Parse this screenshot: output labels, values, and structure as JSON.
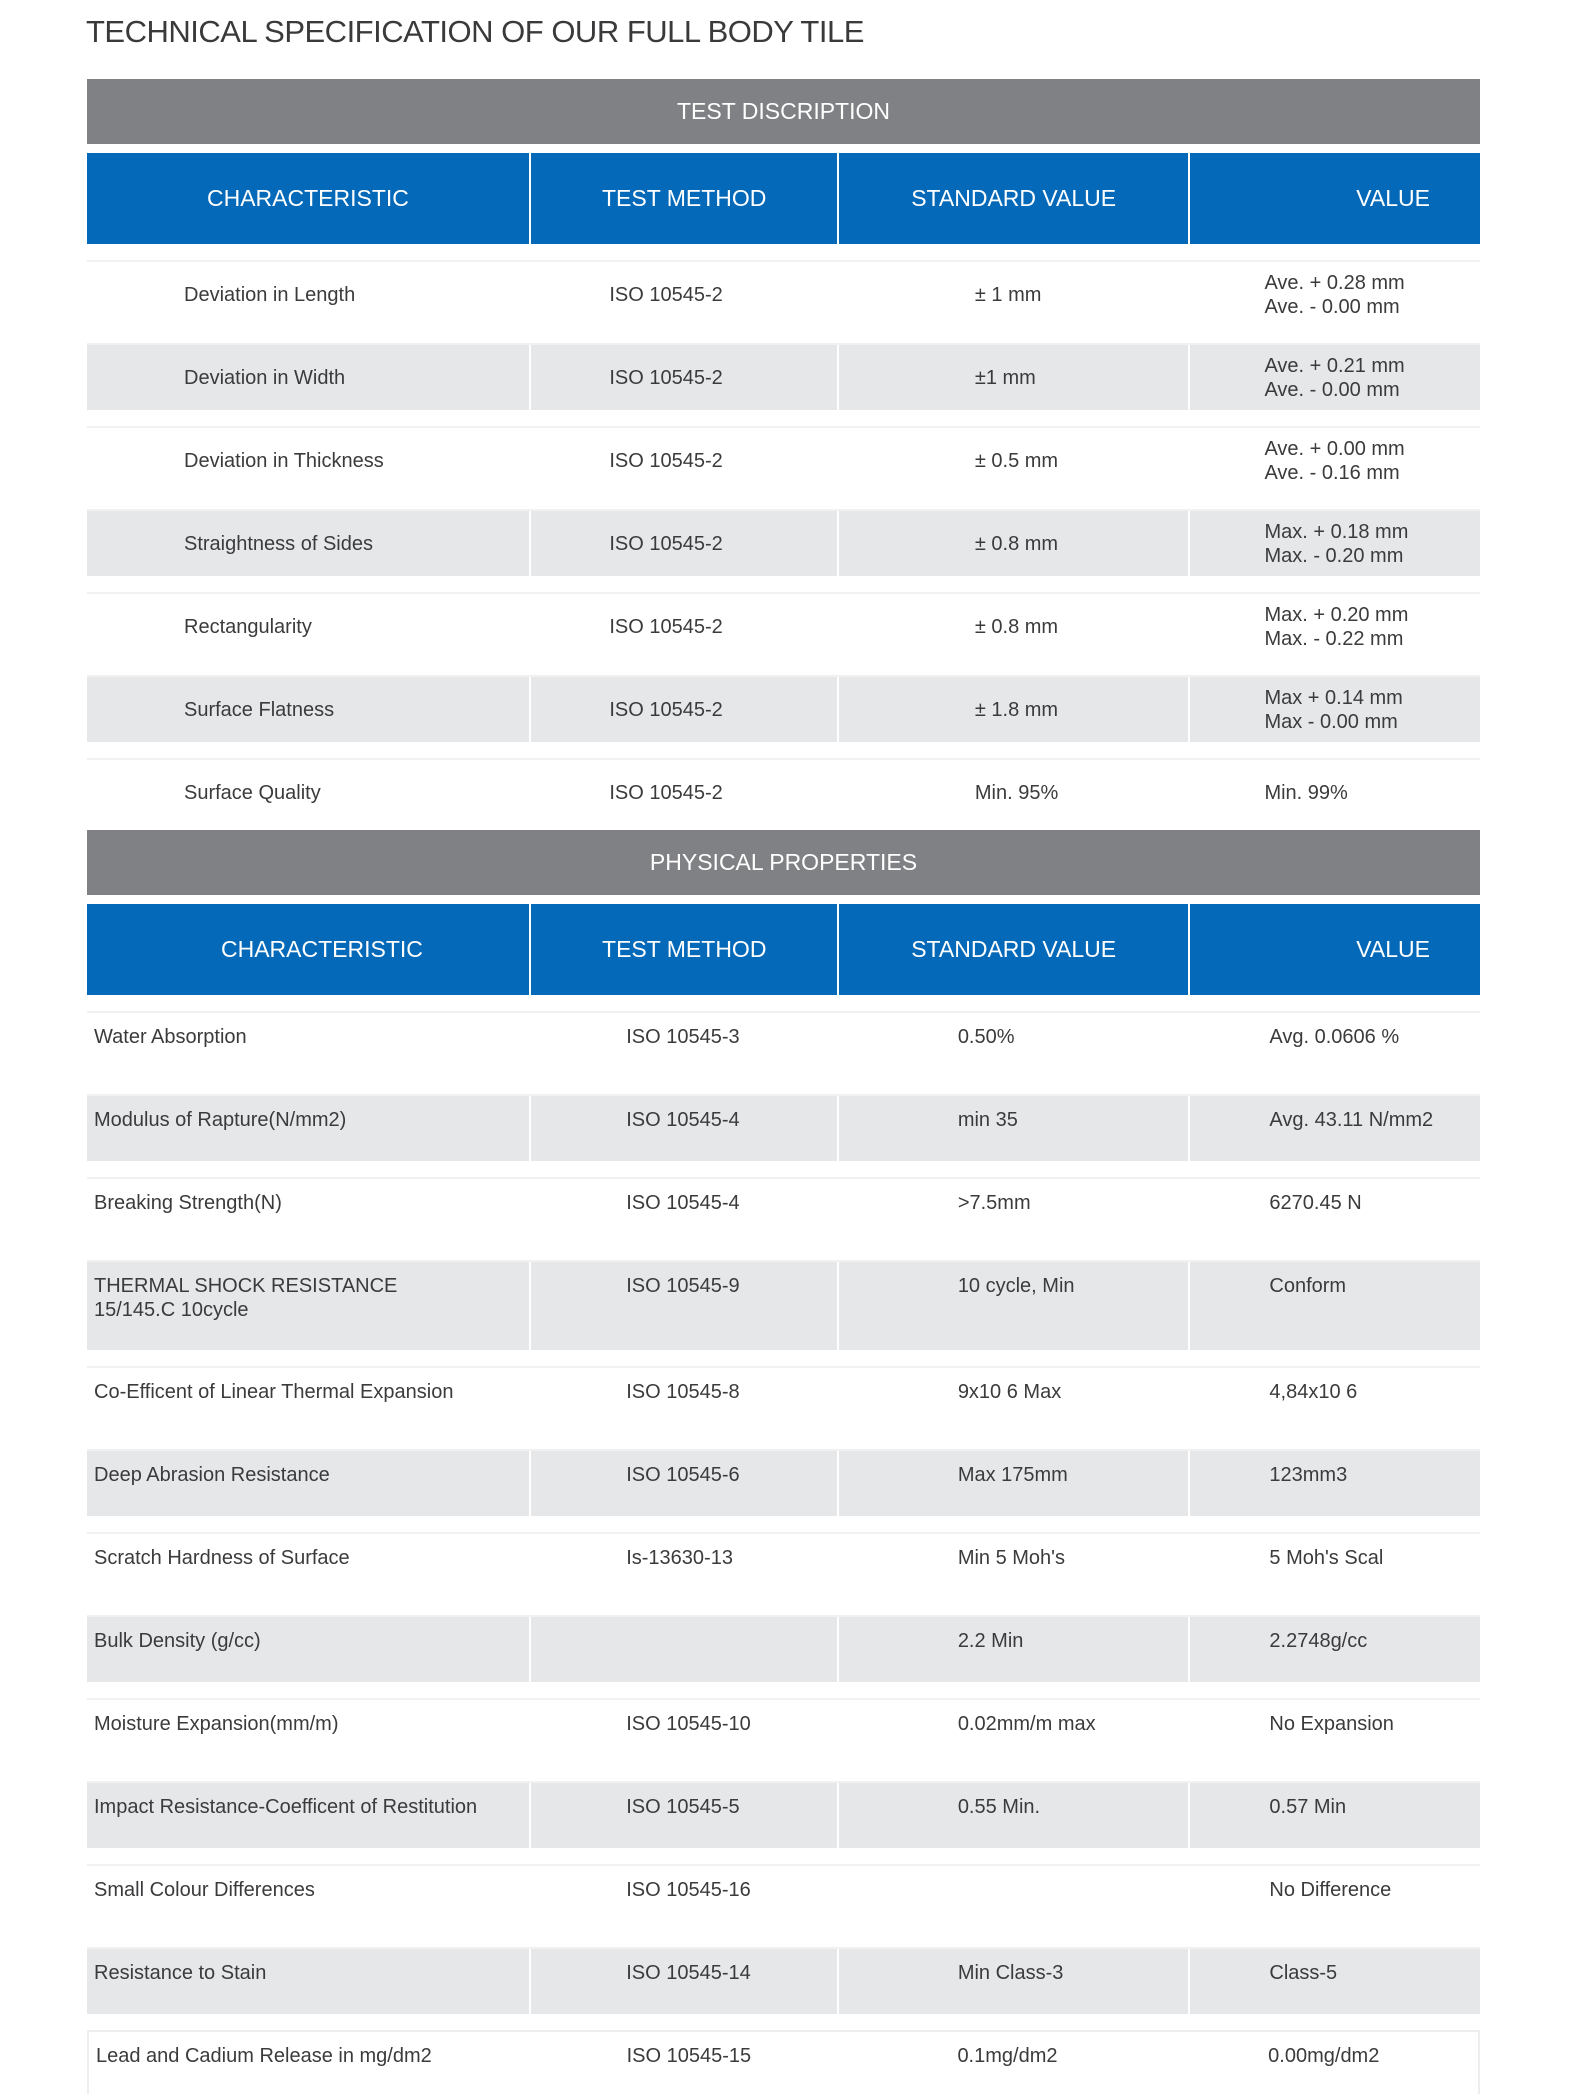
{
  "title": "TECHNICAL SPECIFICATION OF OUR FULL BODY TILE",
  "columns": [
    "CHARACTERISTIC",
    "TEST METHOD",
    "STANDARD VALUE",
    "VALUE"
  ],
  "colors": {
    "section_header": "#808184",
    "column_header": "#0569b9",
    "row_alt": "#e6e7e8"
  },
  "test": {
    "heading": "TEST DISCRIPTION",
    "rows": [
      {
        "characteristic": "Deviation in Length",
        "method": "ISO 10545-2",
        "standard": "± 1 mm",
        "value": [
          "Ave. + 0.28 mm",
          "Ave. - 0.00 mm"
        ]
      },
      {
        "characteristic": "Deviation in Width",
        "method": "ISO 10545-2",
        "standard": "±1 mm",
        "value": [
          "Ave. + 0.21 mm",
          "Ave. - 0.00 mm"
        ]
      },
      {
        "characteristic": "Deviation in Thickness",
        "method": "ISO 10545-2",
        "standard": "± 0.5 mm",
        "value": [
          "Ave. + 0.00 mm",
          "Ave. - 0.16 mm"
        ]
      },
      {
        "characteristic": "Straightness of Sides",
        "method": "ISO 10545-2",
        "standard": "± 0.8 mm",
        "value": [
          "Max. + 0.18 mm",
          "Max. - 0.20 mm"
        ]
      },
      {
        "characteristic": "Rectangularity",
        "method": "ISO 10545-2",
        "standard": "± 0.8 mm",
        "value": [
          "Max. + 0.20 mm",
          "Max. - 0.22 mm"
        ]
      },
      {
        "characteristic": "Surface Flatness",
        "method": "ISO 10545-2",
        "standard": "± 1.8 mm",
        "value": [
          "Max +  0.14 mm",
          "Max -   0.00 mm"
        ]
      },
      {
        "characteristic": "Surface Quality",
        "method": "ISO 10545-2",
        "standard": "Min. 95%",
        "value": [
          "Min. 99%"
        ]
      }
    ]
  },
  "physical": {
    "heading": "PHYSICAL PROPERTIES",
    "rows": [
      {
        "characteristic": [
          "Water Absorption"
        ],
        "method": "ISO 10545-3",
        "standard": "0.50%",
        "value": "Avg. 0.0606 %"
      },
      {
        "characteristic": [
          "Modulus of Rapture(N/mm2)"
        ],
        "method": "ISO 10545-4",
        "standard": "min 35",
        "value": "Avg. 43.11 N/mm2"
      },
      {
        "characteristic": [
          "Breaking Strength(N)"
        ],
        "method": "ISO 10545-4",
        "standard": ">7.5mm",
        "value": "6270.45 N"
      },
      {
        "characteristic": [
          "THERMAL SHOCK RESISTANCE",
          "15/145.C 10cycle"
        ],
        "method": "ISO 10545-9",
        "standard": "10 cycle, Min",
        "value": "Conform"
      },
      {
        "characteristic": [
          "Co-Efficent of Linear Thermal Expansion"
        ],
        "method": "ISO 10545-8",
        "standard": "9x10 6 Max",
        "value": "4,84x10 6"
      },
      {
        "characteristic": [
          "Deep Abrasion Resistance"
        ],
        "method": "ISO 10545-6",
        "standard": "Max 175mm",
        "value": "123mm3"
      },
      {
        "characteristic": [
          "Scratch Hardness of Surface"
        ],
        "method": "Is-13630-13",
        "standard": "Min 5 Moh's",
        "value": "5 Moh's Scal"
      },
      {
        "characteristic": [
          "Bulk Density (g/cc)"
        ],
        "method": "",
        "standard": "2.2 Min",
        "value": "2.2748g/cc"
      },
      {
        "characteristic": [
          "Moisture Expansion(mm/m)"
        ],
        "method": "ISO 10545-10",
        "standard": "0.02mm/m max",
        "value": "No Expansion"
      },
      {
        "characteristic": [
          "Impact Resistance-Coefficent of Restitution"
        ],
        "method": "ISO 10545-5",
        "standard": "0.55 Min.",
        "value": "0.57 Min"
      },
      {
        "characteristic": [
          "Small Colour Differences"
        ],
        "method": "ISO 10545-16",
        "standard": "",
        "value": "No Difference"
      },
      {
        "characteristic": [
          "Resistance to Stain"
        ],
        "method": "ISO 10545-14",
        "standard": "Min Class-3",
        "value": "Class-5"
      },
      {
        "characteristic": [
          "Lead and Cadium Release in mg/dm2"
        ],
        "method": "ISO 10545-15",
        "standard": "0.1mg/dm2",
        "value": "0.00mg/dm2"
      }
    ]
  }
}
